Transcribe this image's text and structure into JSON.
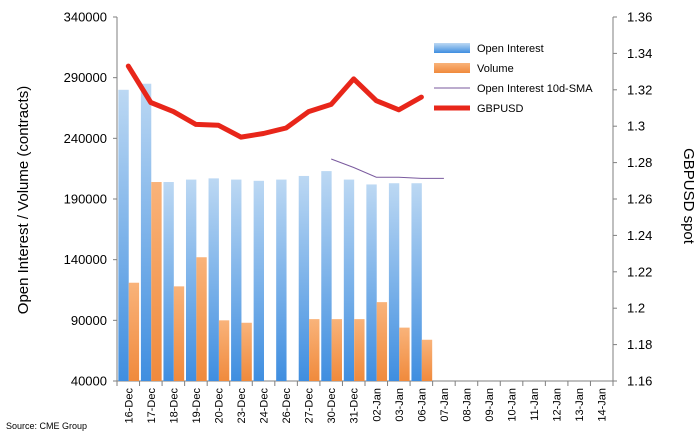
{
  "chart_data": {
    "type": "bar",
    "categories": [
      "16-Dec",
      "17-Dec",
      "18-Dec",
      "19-Dec",
      "20-Dec",
      "23-Dec",
      "24-Dec",
      "26-Dec",
      "27-Dec",
      "30-Dec",
      "31-Dec",
      "02-Jan",
      "03-Jan",
      "06-Jan",
      "07-Jan",
      "08-Jan",
      "09-Jan",
      "10-Jan",
      "11-Jan",
      "12-Jan",
      "13-Jan",
      "14-Jan"
    ],
    "ylabel": "Open Interest / Volume (contracts)",
    "y2label": "GBPUSD spot",
    "ylim": [
      40000,
      340000
    ],
    "y2lim": [
      1.16,
      1.36
    ],
    "yticks": [
      "340000",
      "290000",
      "240000",
      "190000",
      "140000",
      "90000",
      "40000"
    ],
    "y2ticks": [
      "1.36",
      "1.34",
      "1.32",
      "1.3",
      "1.28",
      "1.26",
      "1.24",
      "1.22",
      "1.2",
      "1.18",
      "1.16"
    ],
    "legend_position": "top-right",
    "series": [
      {
        "name": "Open Interest",
        "kind": "bar",
        "color": "#5b9bd5",
        "values": [
          280000,
          285000,
          204000,
          206000,
          207000,
          206000,
          205000,
          206000,
          209000,
          213000,
          206000,
          202000,
          203000,
          203000,
          null,
          null,
          null,
          null,
          null,
          null,
          null,
          null
        ]
      },
      {
        "name": "Volume",
        "kind": "bar",
        "color": "#f79646",
        "values": [
          121000,
          204000,
          118000,
          142000,
          90000,
          88000,
          null,
          null,
          91000,
          91000,
          91000,
          105000,
          84000,
          74000,
          null,
          null,
          null,
          null,
          null,
          null,
          null,
          null
        ]
      },
      {
        "name": "Open Interest 10d-SMA",
        "kind": "line",
        "axis": "left",
        "color": "#7a5a9e",
        "values": [
          null,
          null,
          null,
          null,
          null,
          null,
          null,
          null,
          null,
          223000,
          216000,
          208000,
          208000,
          207000,
          207000,
          null,
          null,
          null,
          null,
          null,
          null,
          null
        ]
      },
      {
        "name": "GBPUSD",
        "kind": "line",
        "axis": "right",
        "color": "#e8261a",
        "values": [
          1.333,
          1.313,
          1.308,
          1.301,
          1.3005,
          1.294,
          1.296,
          1.299,
          1.308,
          1.312,
          1.326,
          1.314,
          1.309,
          1.316,
          null,
          null,
          null,
          null,
          null,
          null,
          null,
          null
        ]
      }
    ]
  },
  "source": "Source: CME Group"
}
